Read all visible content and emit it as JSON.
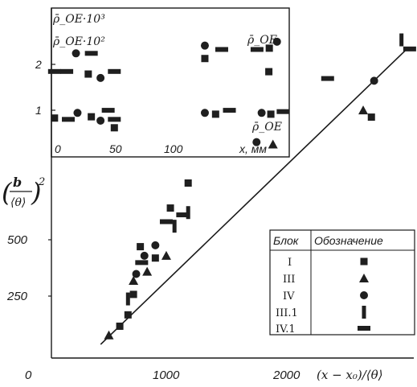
{
  "chart_data": [
    {
      "type": "scatter",
      "title": "",
      "xlabel": "(x − x₀)/⟨θ⟩",
      "ylabel": "(b/⟨θ⟩)²",
      "x_axis_label_number": "2000",
      "xlim": [
        0,
        2650
      ],
      "ylim": [
        0,
        770
      ],
      "x_ticks": [
        "0",
        "1000",
        "2000"
      ],
      "y_ticks": [
        "250",
        "500"
      ],
      "legend": {
        "header": [
          "Блок",
          "Обозначение"
        ],
        "entries": [
          {
            "name": "I",
            "marker": "square"
          },
          {
            "name": "III",
            "marker": "triangle"
          },
          {
            "name": "IV",
            "marker": "circle"
          },
          {
            "name": "III.1",
            "marker": "vbar"
          },
          {
            "name": "IV.1",
            "marker": "hbar"
          }
        ]
      },
      "trend_line": {
        "points": [
          [
            360,
            30
          ],
          [
            2600,
            680
          ]
        ]
      },
      "series": [
        {
          "name": "I",
          "marker": "square",
          "points": [
            [
              500,
              70
            ],
            [
              560,
              95
            ],
            [
              600,
              140
            ],
            [
              650,
              245
            ],
            [
              760,
              220
            ],
            [
              870,
              330
            ],
            [
              1000,
              385
            ],
            [
              1590,
              630
            ],
            [
              2340,
              530
            ]
          ]
        },
        {
          "name": "III",
          "marker": "triangle",
          "points": [
            [
              420,
              50
            ],
            [
              600,
              170
            ],
            [
              700,
              190
            ],
            [
              840,
              225
            ],
            [
              1620,
              470
            ],
            [
              2280,
              545
            ]
          ]
        },
        {
          "name": "IV",
          "marker": "circle",
          "points": [
            [
              620,
              185
            ],
            [
              680,
              225
            ],
            [
              760,
              248
            ],
            [
              1500,
              475
            ],
            [
              2360,
              610
            ]
          ]
        },
        {
          "name": "III.1",
          "marker": "vbar",
          "points": [
            [
              560,
              130
            ],
            [
              900,
              290
            ],
            [
              1000,
              320
            ],
            [
              2560,
              700
            ]
          ]
        },
        {
          "name": "IV.1",
          "marker": "hbar",
          "points": [
            [
              660,
              210
            ],
            [
              840,
              300
            ],
            [
              960,
              315
            ],
            [
              2020,
              615
            ],
            [
              2620,
              680
            ]
          ]
        }
      ]
    },
    {
      "type": "scatter",
      "title": "",
      "xlabel": "x, мм",
      "ylabel_top": "ρ̄_OE·10³",
      "ylabel_bottom": "ρ̄_OE·10²",
      "upper_series_label": "ρ̄_OE",
      "lower_series_label": "ρ̄_OE",
      "xlim": [
        0,
        155
      ],
      "ylim": [
        0.4,
        2.7
      ],
      "x_ticks": [
        "0",
        "50",
        "100"
      ],
      "y_ticks": [
        "1",
        "2"
      ],
      "series": [
        {
          "name": "upper",
          "points": [
            {
              "x": 2,
              "y": 1.72,
              "m": "hbar"
            },
            {
              "x": 10,
              "y": 1.72,
              "m": "hbar"
            },
            {
              "x": 16,
              "y": 2.0,
              "m": "circle"
            },
            {
              "x": 26,
              "y": 2.0,
              "m": "hbar"
            },
            {
              "x": 24,
              "y": 1.68,
              "m": "square"
            },
            {
              "x": 32,
              "y": 1.62,
              "m": "circle"
            },
            {
              "x": 41,
              "y": 1.72,
              "m": "hbar"
            },
            {
              "x": 100,
              "y": 2.12,
              "m": "circle"
            },
            {
              "x": 100,
              "y": 1.92,
              "m": "square"
            },
            {
              "x": 111,
              "y": 2.06,
              "m": "hbar"
            },
            {
              "x": 134,
              "y": 2.06,
              "m": "hbar"
            },
            {
              "x": 142,
              "y": 2.08,
              "m": "square"
            },
            {
              "x": 147,
              "y": 2.18,
              "m": "circle"
            }
          ]
        },
        {
          "name": "lower",
          "points": [
            {
              "x": 2,
              "y": 1.0,
              "m": "square"
            },
            {
              "x": 11,
              "y": 0.98,
              "m": "hbar"
            },
            {
              "x": 17,
              "y": 1.08,
              "m": "circle"
            },
            {
              "x": 26,
              "y": 1.02,
              "m": "square"
            },
            {
              "x": 32,
              "y": 0.96,
              "m": "circle"
            },
            {
              "x": 37,
              "y": 1.12,
              "m": "hbar"
            },
            {
              "x": 41,
              "y": 0.98,
              "m": "hbar"
            },
            {
              "x": 41,
              "y": 0.85,
              "m": "square"
            },
            {
              "x": 100,
              "y": 1.08,
              "m": "circle"
            },
            {
              "x": 107,
              "y": 1.06,
              "m": "square"
            },
            {
              "x": 116,
              "y": 1.12,
              "m": "hbar"
            },
            {
              "x": 137,
              "y": 1.08,
              "m": "circle"
            },
            {
              "x": 143,
              "y": 1.06,
              "m": "square"
            },
            {
              "x": 151,
              "y": 1.1,
              "m": "hbar"
            }
          ]
        }
      ]
    }
  ]
}
